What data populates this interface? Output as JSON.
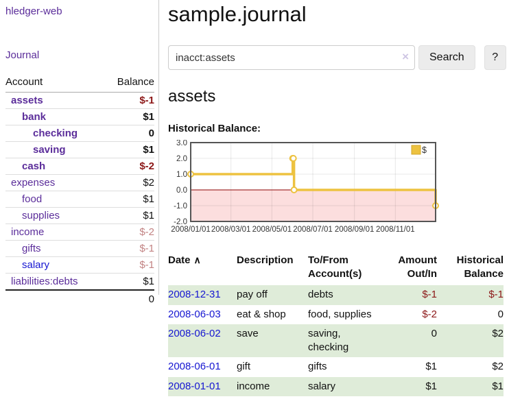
{
  "sidebar": {
    "brand": "hledger-web",
    "journal_link": "Journal",
    "accounts_table": {
      "headers": {
        "account": "Account",
        "balance": "Balance"
      },
      "rows": [
        {
          "name": "assets",
          "depth": 1,
          "balance": "$-1",
          "strong": true,
          "link_tone": "purple",
          "balance_tone": "negative"
        },
        {
          "name": "bank",
          "depth": 2,
          "balance": "$1",
          "strong": true,
          "link_tone": "purple",
          "balance_tone": "default"
        },
        {
          "name": "checking",
          "depth": 3,
          "balance": "0",
          "strong": true,
          "link_tone": "purple",
          "balance_tone": "default"
        },
        {
          "name": "saving",
          "depth": 3,
          "balance": "$1",
          "strong": true,
          "link_tone": "purple",
          "balance_tone": "default"
        },
        {
          "name": "cash",
          "depth": 2,
          "balance": "$-2",
          "strong": true,
          "link_tone": "purple",
          "balance_tone": "negative"
        },
        {
          "name": "expenses",
          "depth": 1,
          "balance": "$2",
          "strong": false,
          "link_tone": "purple",
          "balance_tone": "default"
        },
        {
          "name": "food",
          "depth": 2,
          "balance": "$1",
          "strong": false,
          "link_tone": "purple",
          "balance_tone": "default"
        },
        {
          "name": "supplies",
          "depth": 2,
          "balance": "$1",
          "strong": false,
          "link_tone": "purple",
          "balance_tone": "default"
        },
        {
          "name": "income",
          "depth": 1,
          "balance": "$-2",
          "strong": false,
          "link_tone": "purple",
          "balance_tone": "negative-dim"
        },
        {
          "name": "gifts",
          "depth": 2,
          "balance": "$-1",
          "strong": false,
          "link_tone": "purple",
          "balance_tone": "negative-dim"
        },
        {
          "name": "salary",
          "depth": 2,
          "balance": "$-1",
          "strong": false,
          "link_tone": "blue",
          "balance_tone": "negative-dim"
        },
        {
          "name": "liabilities:debts",
          "depth": 1,
          "balance": "$1",
          "strong": false,
          "link_tone": "purple",
          "balance_tone": "default"
        }
      ],
      "total": "0"
    }
  },
  "main": {
    "title": "sample.journal",
    "search": {
      "value": "inacct:assets",
      "clear_icon": "×",
      "search_button": "Search",
      "help_button": "?"
    },
    "account_heading": "assets",
    "chart_label": "Historical Balance:",
    "register": {
      "headers": {
        "date": "Date",
        "sort_icon": "∧",
        "description": "Description",
        "accounts": "To/From Account(s)",
        "amount": "Amount Out/In",
        "balance": "Historical Balance"
      },
      "rows": [
        {
          "date": "2008-12-31",
          "description": "pay off",
          "accounts": "debts",
          "amount": "$-1",
          "amount_tone": "negative",
          "balance": "$-1",
          "balance_tone": "negative",
          "striped": true
        },
        {
          "date": "2008-06-03",
          "description": "eat & shop",
          "accounts": "food, supplies",
          "amount": "$-2",
          "amount_tone": "negative",
          "balance": "0",
          "balance_tone": "default",
          "striped": false
        },
        {
          "date": "2008-06-02",
          "description": "save",
          "accounts": "saving, checking",
          "amount": "0",
          "amount_tone": "default",
          "balance": "$2",
          "balance_tone": "default",
          "striped": true
        },
        {
          "date": "2008-06-01",
          "description": "gift",
          "accounts": "gifts",
          "amount": "$1",
          "amount_tone": "default",
          "balance": "$2",
          "balance_tone": "default",
          "striped": false
        },
        {
          "date": "2008-01-01",
          "description": "income",
          "accounts": "salary",
          "amount": "$1",
          "amount_tone": "default",
          "balance": "$1",
          "balance_tone": "default",
          "striped": true
        }
      ]
    }
  },
  "chart_data": {
    "type": "line",
    "step": true,
    "title": "Historical Balance:",
    "series": [
      {
        "name": "$",
        "color": "#edc240",
        "points": [
          [
            "2008-01-01",
            1
          ],
          [
            "2008-06-01",
            2
          ],
          [
            "2008-06-02",
            2
          ],
          [
            "2008-06-03",
            0
          ],
          [
            "2008-12-31",
            -1
          ]
        ]
      }
    ],
    "x_range": [
      "2008-01-01",
      "2008-12-31"
    ],
    "x_ticks": [
      "2008/01/01",
      "2008/03/01",
      "2008/05/01",
      "2008/07/01",
      "2008/09/01",
      "2008/11/01"
    ],
    "y_ticks": [
      3.0,
      2.0,
      1.0,
      0.0,
      -1.0,
      -2.0
    ],
    "ylim": [
      -2,
      3
    ],
    "grid": true,
    "legend": {
      "label": "$",
      "position": "top-right"
    },
    "negative_region_color": "#fcdede",
    "zero_line_color": "#8b0000",
    "border_color": "#555555"
  },
  "colors": {
    "link_purple": "#5b2d9a",
    "link_blue": "#1616d1",
    "negative_strong": "#8c1717",
    "negative_dim": "#c28383",
    "row_stripe_green": "#dfecd9",
    "series_gold": "#edc240"
  }
}
